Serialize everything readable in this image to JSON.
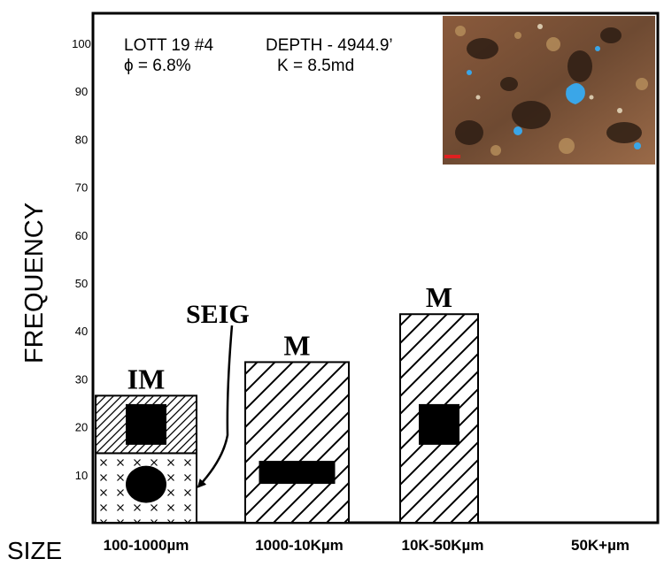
{
  "chart_data": {
    "type": "bar",
    "ylabel": "FREQUENCY",
    "xlabel": "SIZE",
    "ylim": [
      0,
      110
    ],
    "yticks": [
      10,
      20,
      30,
      40,
      50,
      60,
      70,
      80,
      90,
      100
    ],
    "categories": [
      "100-1000µm",
      "1000-10Kµm",
      "10K-50Kµm",
      "50K+µm"
    ],
    "bars": [
      {
        "category": "100-1000µm",
        "label": "IM",
        "segments": [
          {
            "from": 0,
            "to": 14.5,
            "pattern": "crosses",
            "symbol": "circle",
            "symbol_value": 8
          },
          {
            "from": 14.5,
            "to": 26.5,
            "pattern": "fine-hatch",
            "symbol": "square",
            "symbol_value": 20.5
          }
        ]
      },
      {
        "category": "1000-10Kµm",
        "label": "M",
        "segments": [
          {
            "from": 0,
            "to": 33.5,
            "pattern": "hatch",
            "symbol": "rectangle",
            "symbol_value": 10.5
          }
        ]
      },
      {
        "category": "10K-50Kµm",
        "label": "M",
        "segments": [
          {
            "from": 0,
            "to": 43.5,
            "pattern": "hatch",
            "symbol": "square",
            "symbol_value": 20.5
          }
        ]
      },
      {
        "category": "50K+µm",
        "label": "",
        "segments": []
      }
    ],
    "annotation": {
      "text": "SEIG",
      "target_category": "100-1000µm",
      "target_value": 7.5
    },
    "sample": {
      "well": "LOTT 19 #4",
      "depth": "DEPTH - 4944.9’",
      "porosity": "ϕ  = 6.8%",
      "permeability": "K = 8.5md"
    },
    "inset_image": "thin-section-photomicrograph"
  }
}
